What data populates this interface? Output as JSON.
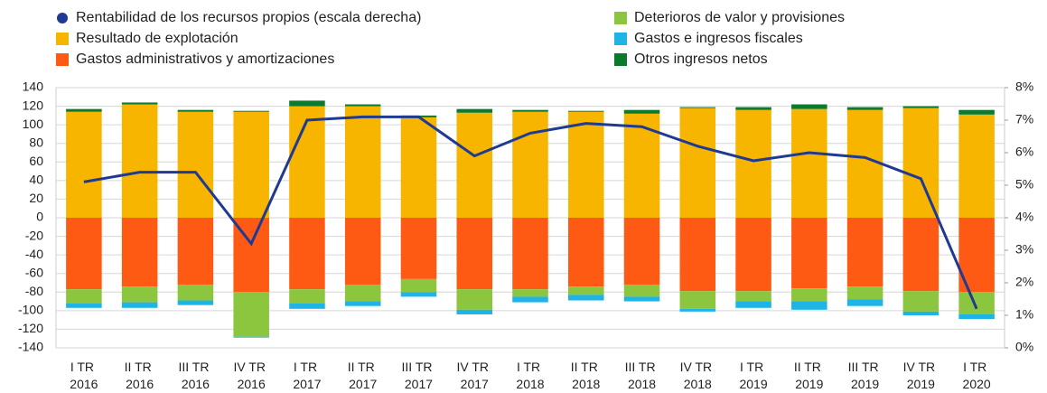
{
  "chart_data": {
    "type": "bar",
    "categories": [
      "I TR 2016",
      "II TR 2016",
      "III TR 2016",
      "IV TR 2016",
      "I TR 2017",
      "II TR 2017",
      "III TR 2017",
      "IV TR 2017",
      "I TR 2018",
      "II TR 2018",
      "III TR 2018",
      "IV TR 2018",
      "I TR 2019",
      "II TR 2019",
      "III TR 2019",
      "IV TR 2019",
      "I TR 2020"
    ],
    "series": [
      {
        "name": "Rentabilidad de los recursos propios (escala derecha)",
        "color": "#1f3a93",
        "type": "line",
        "axis": "y2",
        "values": [
          5.1,
          5.4,
          5.4,
          3.2,
          7.0,
          7.1,
          7.1,
          5.9,
          6.6,
          6.9,
          6.8,
          6.2,
          5.75,
          6.0,
          5.85,
          5.2,
          1.2
        ]
      },
      {
        "name": "Resultado de explotación",
        "color": "#f7b500",
        "values": [
          114,
          122,
          114,
          114,
          120,
          120,
          108,
          113,
          114,
          114,
          112,
          118,
          116,
          117,
          116,
          118,
          111
        ]
      },
      {
        "name": "Gastos administrativos y amortizaciones",
        "color": "#ff5a14",
        "values": [
          -77,
          -74,
          -72,
          -80,
          -77,
          -72,
          -66,
          -77,
          -77,
          -74,
          -72,
          -79,
          -79,
          -76,
          -74,
          -79,
          -80
        ]
      },
      {
        "name": "Deterioros de valor y provisiones",
        "color": "#8cc63f",
        "values": [
          -15,
          -17,
          -17,
          -48,
          -15,
          -18,
          -14,
          -22,
          -8,
          -9,
          -13,
          -19,
          -11,
          -14,
          -14,
          -22,
          -24
        ]
      },
      {
        "name": "Gastos e ingresos fiscales",
        "color": "#1fb4e6",
        "values": [
          -5,
          -6,
          -5,
          -1,
          -6,
          -5,
          -5,
          -5,
          -6,
          -6,
          -5,
          -3,
          -7,
          -9,
          -7,
          -4,
          -5
        ]
      },
      {
        "name": "Otros ingresos netos",
        "color": "#0b7a2c",
        "values": [
          3,
          2,
          2,
          1,
          6,
          2,
          2,
          4,
          2,
          1,
          4,
          1,
          3,
          5,
          3,
          2,
          5
        ]
      }
    ],
    "ylim": [
      -140,
      140
    ],
    "yticks": [
      -140,
      -120,
      -100,
      -80,
      -60,
      -40,
      -20,
      0,
      20,
      40,
      60,
      80,
      100,
      120,
      140
    ],
    "y2lim": [
      0,
      8
    ],
    "y2ticks": [
      {
        "value": 0,
        "label": "0%"
      },
      {
        "value": 1,
        "label": "1%"
      },
      {
        "value": 2,
        "label": "2%"
      },
      {
        "value": 3,
        "label": "3%"
      },
      {
        "value": 4,
        "label": "4%"
      },
      {
        "value": 5,
        "label": "5%"
      },
      {
        "value": 6,
        "label": "6%"
      },
      {
        "value": 7,
        "label": "7%"
      },
      {
        "value": 8,
        "label": "8%"
      }
    ],
    "grid": true
  }
}
